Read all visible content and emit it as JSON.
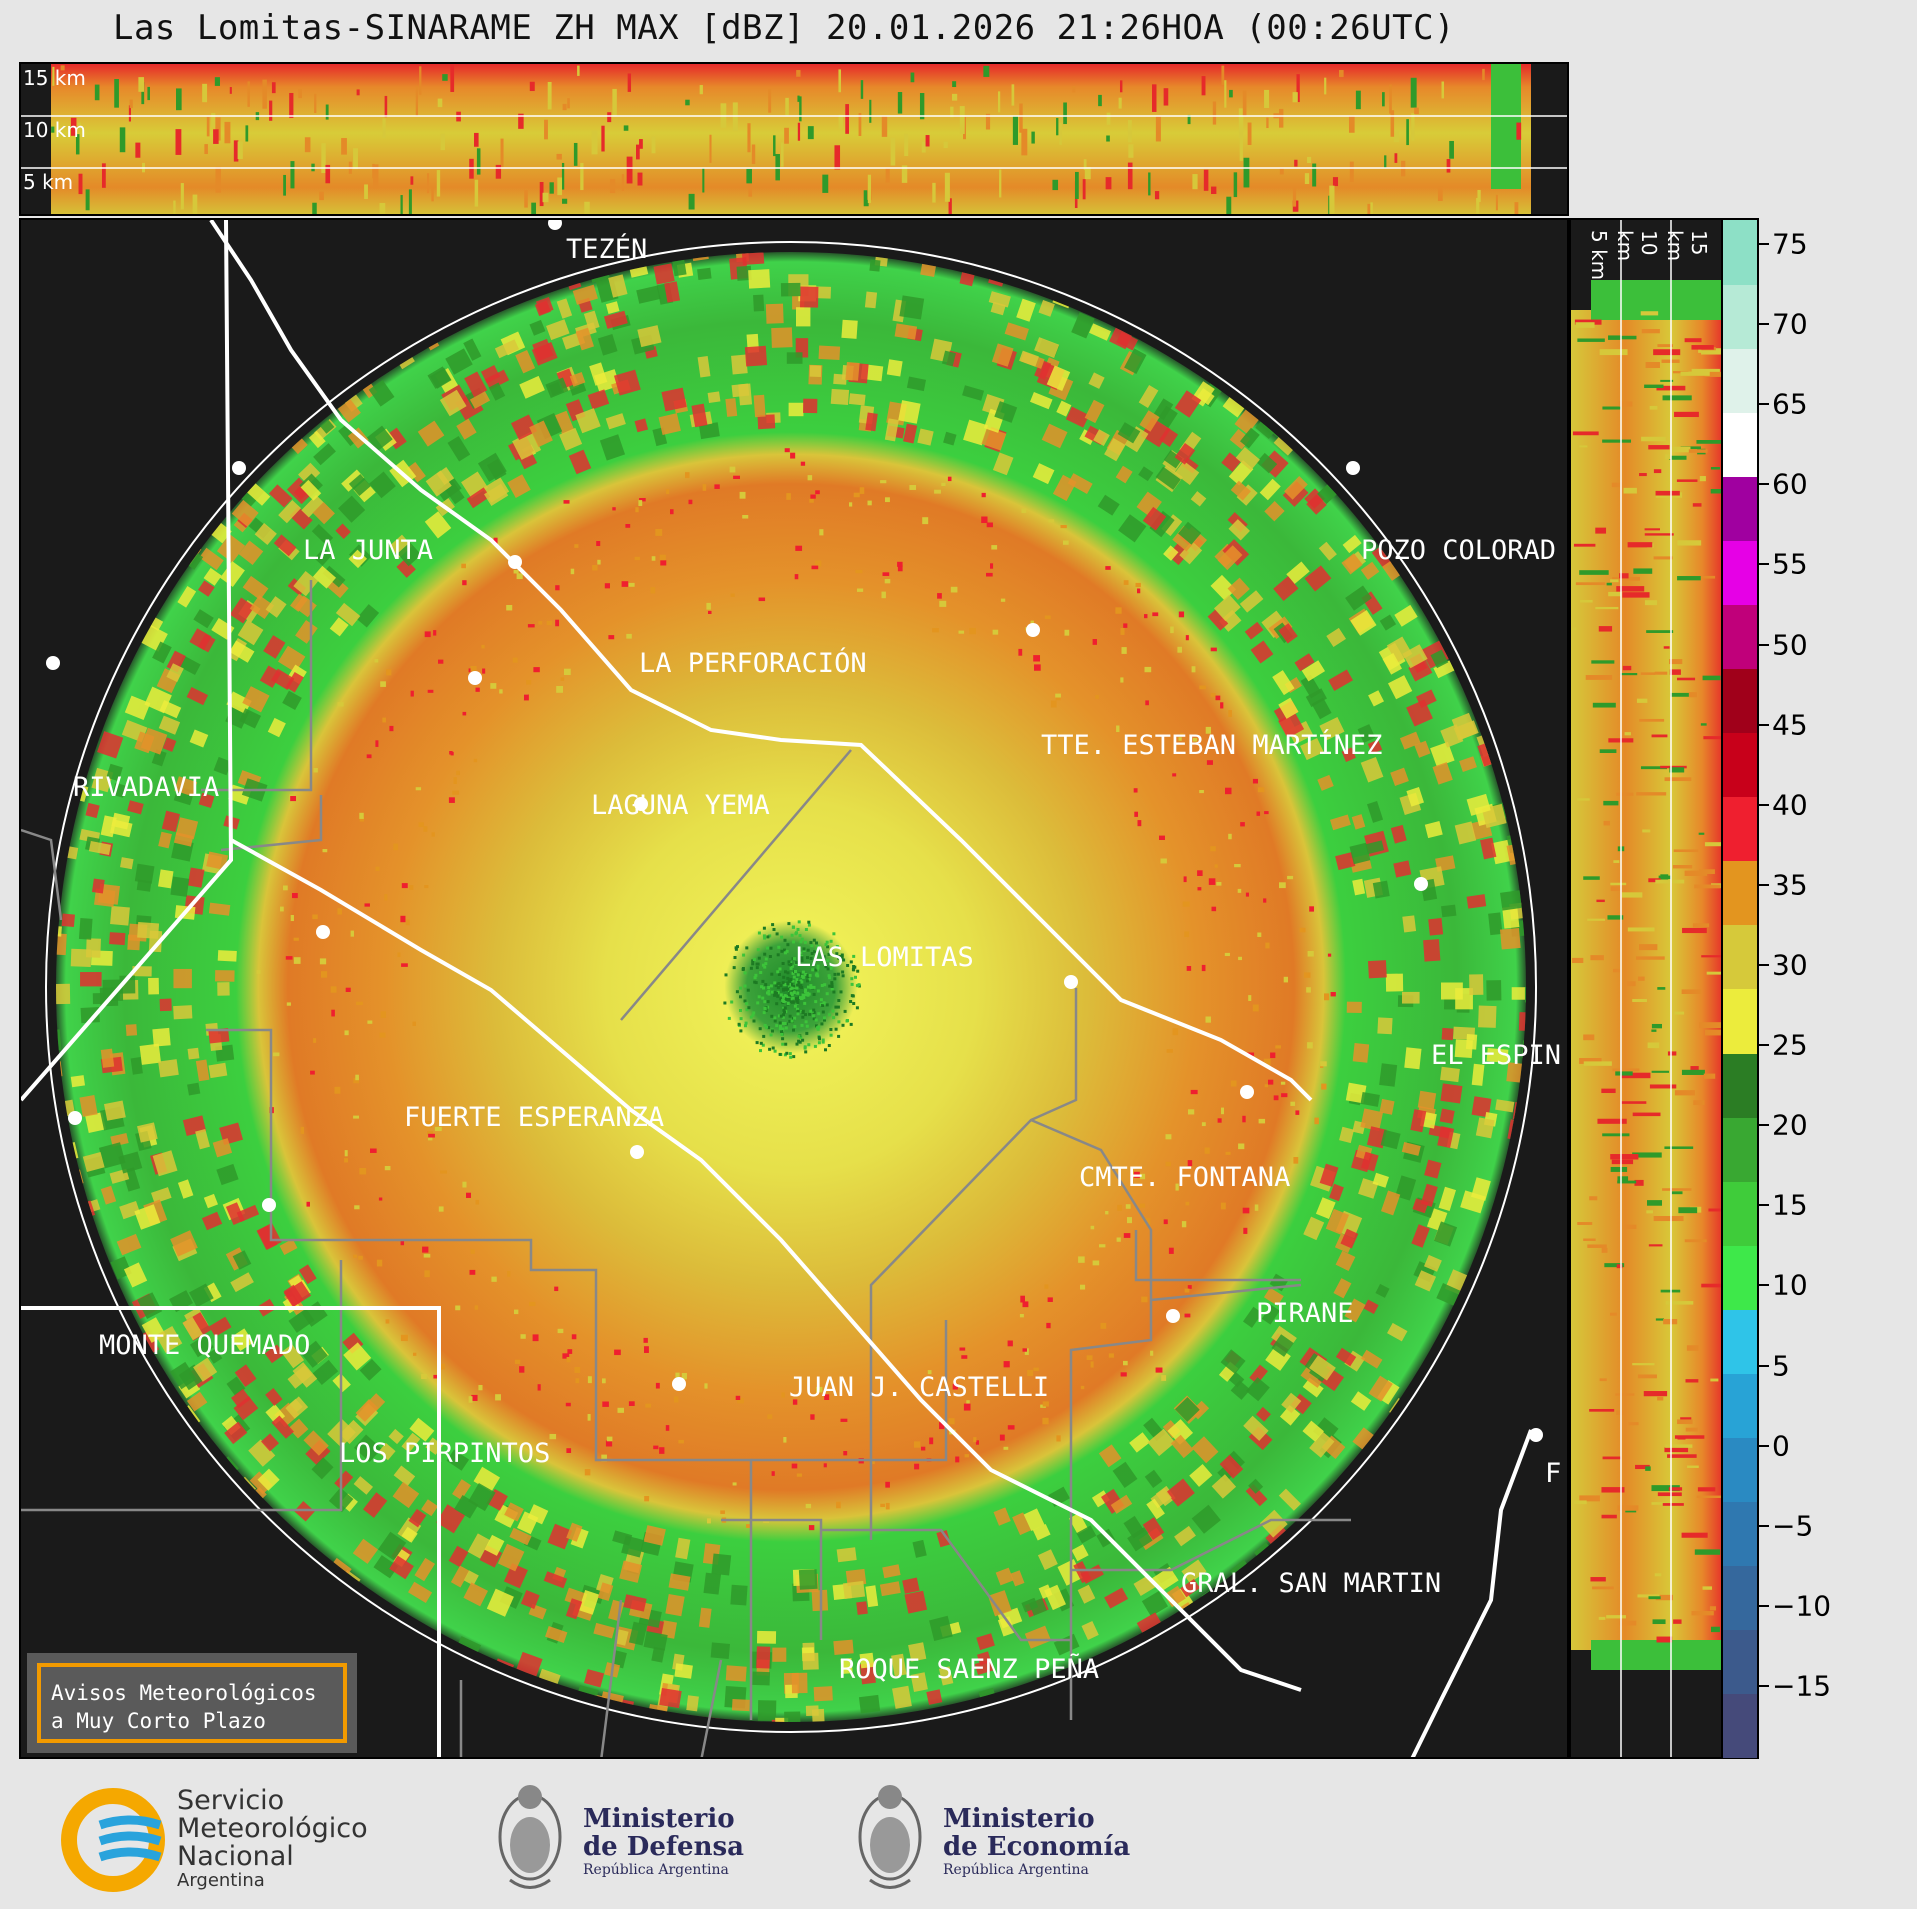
{
  "title": "Las Lomitas-SINARAME ZH MAX [dBZ] 20.01.2026 21:26HOA (00:26UTC)",
  "height_labels": [
    "15 km",
    "10 km",
    "5 km"
  ],
  "colorbar": {
    "ticks": [
      "75",
      "70",
      "65",
      "60",
      "55",
      "50",
      "45",
      "40",
      "35",
      "30",
      "25",
      "20",
      "15",
      "10",
      "5",
      "0",
      "−5",
      "−10",
      "−15"
    ],
    "colors": [
      "#454a7a",
      "#3c5a8c",
      "#35689d",
      "#2f78b0",
      "#2a8ac2",
      "#28a3d6",
      "#2fc4e8",
      "#3ee84a",
      "#3fcc3a",
      "#39a832",
      "#2b7d24",
      "#ecec3c",
      "#d6c93a",
      "#e3951f",
      "#ef1f2f",
      "#c8001a",
      "#a0001a",
      "#c0007a",
      "#e600e6",
      "#a000a0",
      "#ffffff",
      "#dff2ea",
      "#b6ead6",
      "#8de0c6"
    ],
    "unit": "dBZ"
  },
  "cities": [
    {
      "name": "TEZÉN"
    },
    {
      "name": "LA JUNTA"
    },
    {
      "name": "POZO COLORAD"
    },
    {
      "name": "LA PERFORACIÓN"
    },
    {
      "name": "TTE. ESTEBAN MARTÍNEZ"
    },
    {
      "name": "RIVADAVIA"
    },
    {
      "name": "LAGUNA YEMA"
    },
    {
      "name": "LAS LOMITAS"
    },
    {
      "name": "EL ESPIN"
    },
    {
      "name": "FUERTE ESPERANZA"
    },
    {
      "name": "CMTE. FONTANA"
    },
    {
      "name": "PIRANE"
    },
    {
      "name": "MONTE QUEMADO"
    },
    {
      "name": "JUAN J. CASTELLI"
    },
    {
      "name": "LOS PIRPINTOS"
    },
    {
      "name": "GRAL. SAN MARTIN"
    },
    {
      "name": "ROQUE SAENZ PEÑA"
    },
    {
      "name": "F"
    }
  ],
  "avisos": {
    "line1": "Avisos Meteorológicos",
    "line2": "a Muy Corto Plazo"
  },
  "logos": {
    "smn": {
      "l1": "Servicio",
      "l2": "Meteorológico",
      "l3": "Nacional",
      "l4": "Argentina"
    },
    "defensa": {
      "l1": "Ministerio",
      "l2": "de Defensa",
      "l3": "República Argentina"
    },
    "economia": {
      "l1": "Ministerio",
      "l2": "de Economía",
      "l3": "República Argentina"
    }
  }
}
